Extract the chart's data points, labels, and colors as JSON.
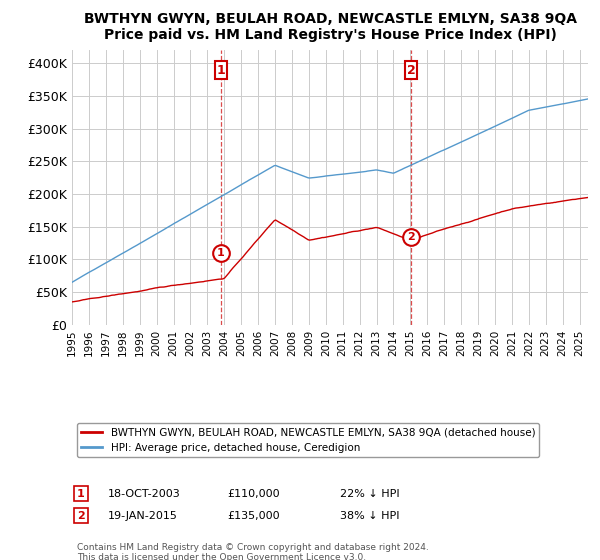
{
  "title": "BWTHYN GWYN, BEULAH ROAD, NEWCASTLE EMLYN, SA38 9QA",
  "subtitle": "Price paid vs. HM Land Registry's House Price Index (HPI)",
  "yticks": [
    0,
    50000,
    100000,
    150000,
    200000,
    250000,
    300000,
    350000,
    400000
  ],
  "ylim": [
    0,
    420000
  ],
  "xlim_start": 1995.0,
  "xlim_end": 2025.5,
  "sale1_date_num": 2003.8,
  "sale1_label": "1",
  "sale1_price": 110000,
  "sale1_hpi_diff": "22% ↓ HPI",
  "sale1_date_str": "18-OCT-2003",
  "sale2_date_num": 2015.05,
  "sale2_label": "2",
  "sale2_price": 135000,
  "sale2_hpi_diff": "38% ↓ HPI",
  "sale2_date_str": "19-JAN-2015",
  "red_line_color": "#cc0000",
  "blue_line_color": "#5599cc",
  "grid_color": "#cccccc",
  "legend_label_red": "BWTHYN GWYN, BEULAH ROAD, NEWCASTLE EMLYN, SA38 9QA (detached house)",
  "legend_label_blue": "HPI: Average price, detached house, Ceredigion",
  "footnote": "Contains HM Land Registry data © Crown copyright and database right 2024.\nThis data is licensed under the Open Government Licence v3.0.",
  "sale1_marker_y": 110000,
  "sale2_marker_y": 135000
}
